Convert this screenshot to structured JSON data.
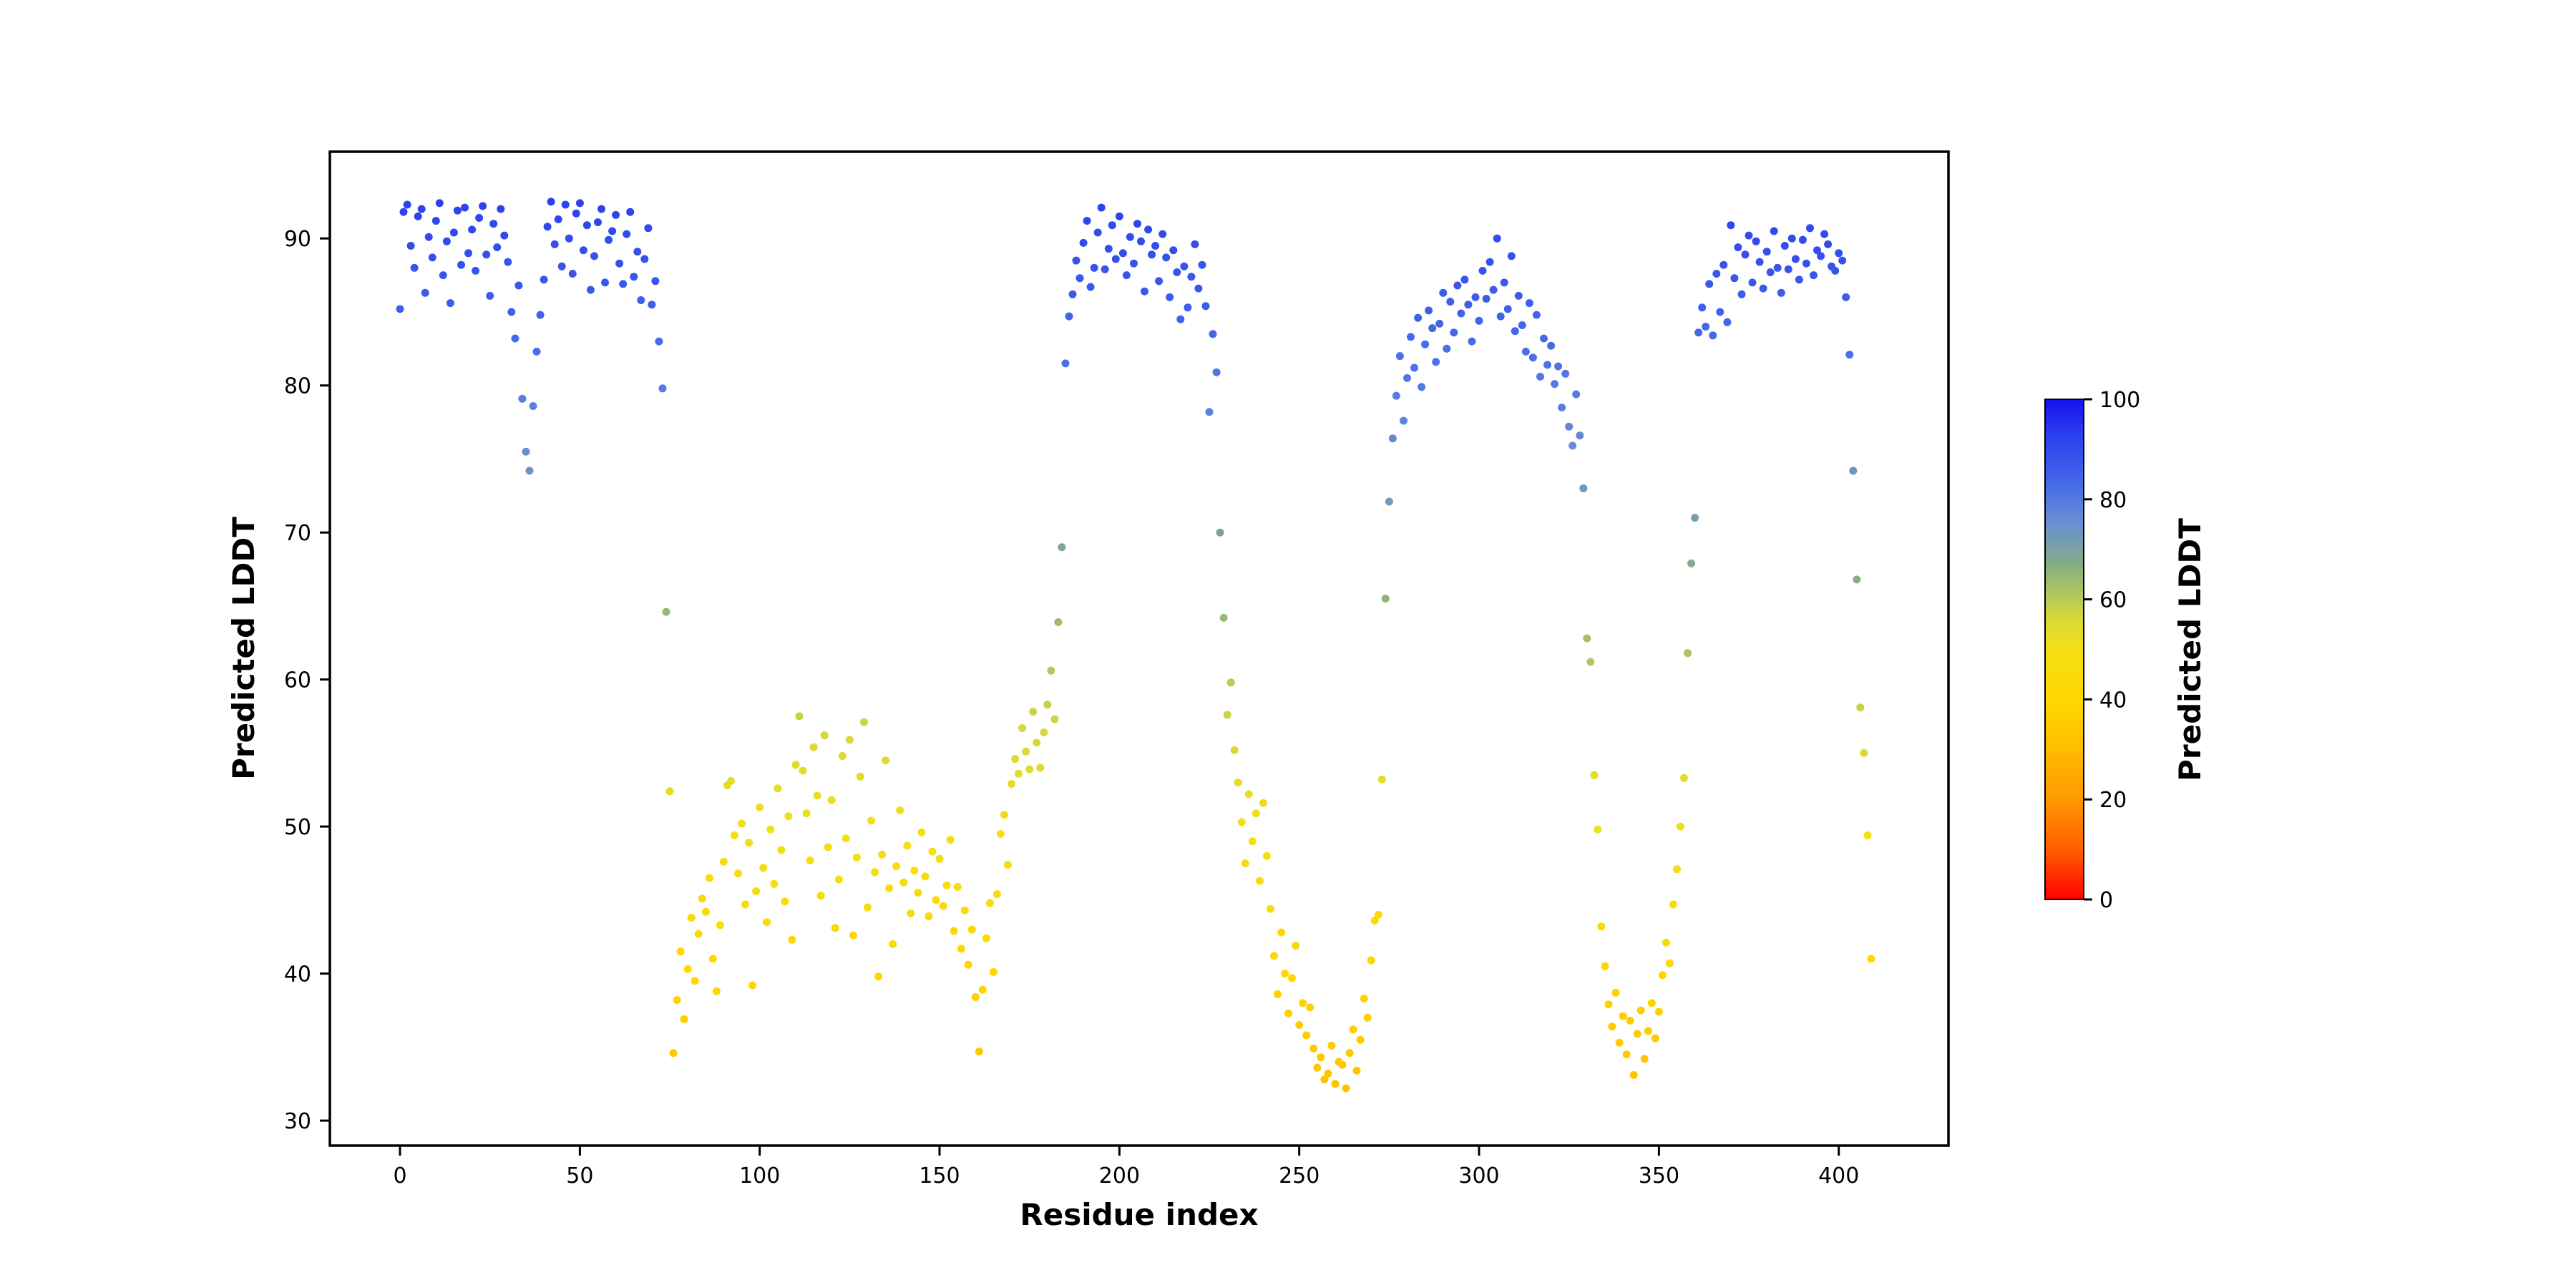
{
  "figure": {
    "background": "#ffffff",
    "title": "",
    "xlabel": "Residue index",
    "ylabel": "Predicted LDDT",
    "colorbar_label": "Predicted LDDT"
  },
  "chart_data": {
    "type": "scatter",
    "title": "",
    "xlabel": "Residue index",
    "ylabel": "Predicted LDDT",
    "x_is_residue_index_starting_at": 0,
    "xlim": [
      -19.5,
      430.5
    ],
    "ylim": [
      28.3,
      95.9
    ],
    "x_ticks": [
      0,
      50,
      100,
      150,
      200,
      250,
      300,
      350,
      400
    ],
    "y_ticks": [
      30,
      40,
      50,
      60,
      70,
      80,
      90
    ],
    "grid": false,
    "marker": "circle",
    "color_encodes": "y-value (Predicted LDDT)",
    "plddt": [
      85.2,
      91.8,
      92.3,
      89.5,
      88.0,
      91.5,
      92.0,
      86.3,
      90.1,
      88.7,
      91.2,
      92.4,
      87.5,
      89.8,
      85.6,
      90.4,
      91.9,
      88.2,
      92.1,
      89.0,
      90.6,
      87.8,
      91.4,
      92.2,
      88.9,
      86.1,
      91.0,
      89.4,
      92.0,
      90.2,
      88.4,
      85.0,
      83.2,
      86.8,
      79.1,
      75.5,
      74.2,
      78.6,
      82.3,
      84.8,
      87.2,
      90.8,
      92.5,
      89.6,
      91.3,
      88.1,
      92.3,
      90.0,
      87.6,
      91.7,
      92.4,
      89.2,
      90.9,
      86.5,
      88.8,
      91.1,
      92.0,
      87.0,
      89.9,
      90.5,
      91.6,
      88.3,
      86.9,
      90.3,
      91.8,
      87.4,
      89.1,
      85.8,
      88.6,
      90.7,
      85.5,
      87.1,
      83.0,
      79.8,
      64.6,
      52.4,
      34.6,
      38.2,
      41.5,
      36.9,
      40.3,
      43.8,
      39.5,
      42.7,
      45.1,
      44.2,
      46.5,
      41.0,
      38.8,
      43.3,
      47.6,
      52.8,
      53.1,
      49.4,
      46.8,
      50.2,
      44.7,
      48.9,
      39.2,
      45.6,
      51.3,
      47.2,
      43.5,
      49.8,
      46.1,
      52.6,
      48.4,
      44.9,
      50.7,
      42.3,
      54.2,
      57.5,
      53.8,
      50.9,
      47.7,
      55.4,
      52.1,
      45.3,
      56.2,
      48.6,
      51.8,
      43.1,
      46.4,
      54.8,
      49.2,
      55.9,
      42.6,
      47.9,
      53.4,
      57.1,
      44.5,
      50.4,
      46.9,
      39.8,
      48.1,
      54.5,
      45.8,
      42.0,
      47.3,
      51.1,
      46.2,
      48.7,
      44.1,
      47.0,
      45.5,
      49.6,
      46.6,
      43.9,
      48.3,
      45.0,
      47.8,
      44.6,
      46.0,
      49.1,
      42.9,
      45.9,
      41.7,
      44.3,
      40.6,
      43.0,
      38.4,
      34.7,
      38.9,
      42.4,
      44.8,
      40.1,
      45.4,
      49.5,
      50.8,
      47.4,
      52.9,
      54.6,
      53.6,
      56.7,
      55.1,
      53.9,
      57.8,
      55.7,
      54.0,
      56.4,
      58.3,
      60.6,
      57.3,
      63.9,
      69.0,
      81.5,
      84.7,
      86.2,
      88.5,
      87.3,
      89.7,
      91.2,
      86.7,
      88.0,
      90.4,
      92.1,
      87.9,
      89.3,
      90.9,
      88.6,
      91.5,
      89.0,
      87.5,
      90.1,
      88.3,
      91.0,
      89.8,
      86.4,
      90.6,
      88.9,
      89.5,
      87.1,
      90.3,
      88.7,
      86.0,
      89.2,
      87.7,
      84.5,
      88.1,
      85.3,
      87.4,
      89.6,
      86.6,
      88.2,
      85.4,
      78.2,
      83.5,
      80.9,
      70.0,
      64.2,
      57.6,
      59.8,
      55.2,
      53.0,
      50.3,
      47.5,
      52.2,
      49.0,
      50.9,
      46.3,
      51.6,
      48.0,
      44.4,
      41.2,
      38.6,
      42.8,
      40.0,
      37.3,
      39.7,
      41.9,
      36.5,
      38.0,
      35.8,
      37.7,
      34.9,
      33.6,
      34.3,
      32.8,
      33.2,
      35.1,
      32.5,
      34.0,
      33.8,
      32.2,
      34.6,
      36.2,
      33.4,
      35.5,
      38.3,
      37.0,
      40.9,
      43.6,
      44.0,
      53.2,
      65.5,
      72.1,
      76.4,
      79.3,
      82.0,
      77.6,
      80.5,
      83.3,
      81.2,
      84.6,
      79.9,
      82.8,
      85.1,
      83.9,
      81.6,
      84.2,
      86.3,
      82.5,
      85.7,
      83.6,
      86.8,
      84.9,
      87.2,
      85.5,
      83.0,
      86.0,
      84.4,
      87.8,
      85.9,
      88.4,
      86.5,
      90.0,
      84.7,
      87.0,
      85.2,
      88.8,
      83.7,
      86.1,
      84.1,
      82.3,
      85.6,
      81.9,
      84.8,
      80.6,
      83.2,
      81.4,
      82.7,
      80.1,
      81.3,
      78.5,
      80.8,
      77.2,
      75.9,
      79.4,
      76.6,
      73.0,
      62.8,
      61.2,
      53.5,
      49.8,
      43.2,
      40.5,
      37.9,
      36.4,
      38.7,
      35.3,
      37.1,
      34.5,
      36.8,
      33.1,
      35.9,
      37.5,
      34.2,
      36.1,
      38.0,
      35.6,
      37.4,
      39.9,
      42.1,
      40.7,
      44.7,
      47.1,
      50.0,
      53.3,
      61.8,
      67.9,
      71.0,
      83.6,
      85.3,
      84.0,
      86.9,
      83.4,
      87.6,
      85.0,
      88.2,
      84.3,
      90.9,
      87.3,
      89.4,
      86.2,
      88.9,
      90.2,
      87.0,
      89.8,
      88.4,
      86.6,
      89.1,
      87.7,
      90.5,
      88.0,
      86.3,
      89.5,
      87.9,
      90.0,
      88.6,
      87.2,
      89.9,
      88.3,
      90.7,
      87.5,
      89.2,
      88.8,
      90.3,
      89.6,
      88.1,
      87.8,
      89.0,
      88.5,
      86.0,
      82.1,
      74.2,
      66.8,
      58.1,
      55.0,
      49.4,
      41.0
    ],
    "colormap": {
      "vmin": 0,
      "vmax": 100,
      "stops": [
        [
          0.0,
          "#ff0000"
        ],
        [
          0.1,
          "#ff5f00"
        ],
        [
          0.2,
          "#ff9800"
        ],
        [
          0.3,
          "#ffbc00"
        ],
        [
          0.4,
          "#ffd700"
        ],
        [
          0.5,
          "#f3df16"
        ],
        [
          0.56,
          "#d8d837"
        ],
        [
          0.62,
          "#a9c463"
        ],
        [
          0.67,
          "#85ad85"
        ],
        [
          0.71,
          "#769ead"
        ],
        [
          0.75,
          "#6b91cf"
        ],
        [
          0.8,
          "#5379e4"
        ],
        [
          0.86,
          "#3c5cea"
        ],
        [
          0.93,
          "#2a3fee"
        ],
        [
          1.0,
          "#1512ee"
        ]
      ]
    },
    "legend_position": "colorbar-right"
  },
  "colorbar": {
    "ticks": [
      0,
      20,
      40,
      60,
      80,
      100
    ],
    "vmin": 0,
    "vmax": 100,
    "label": "Predicted LDDT"
  }
}
